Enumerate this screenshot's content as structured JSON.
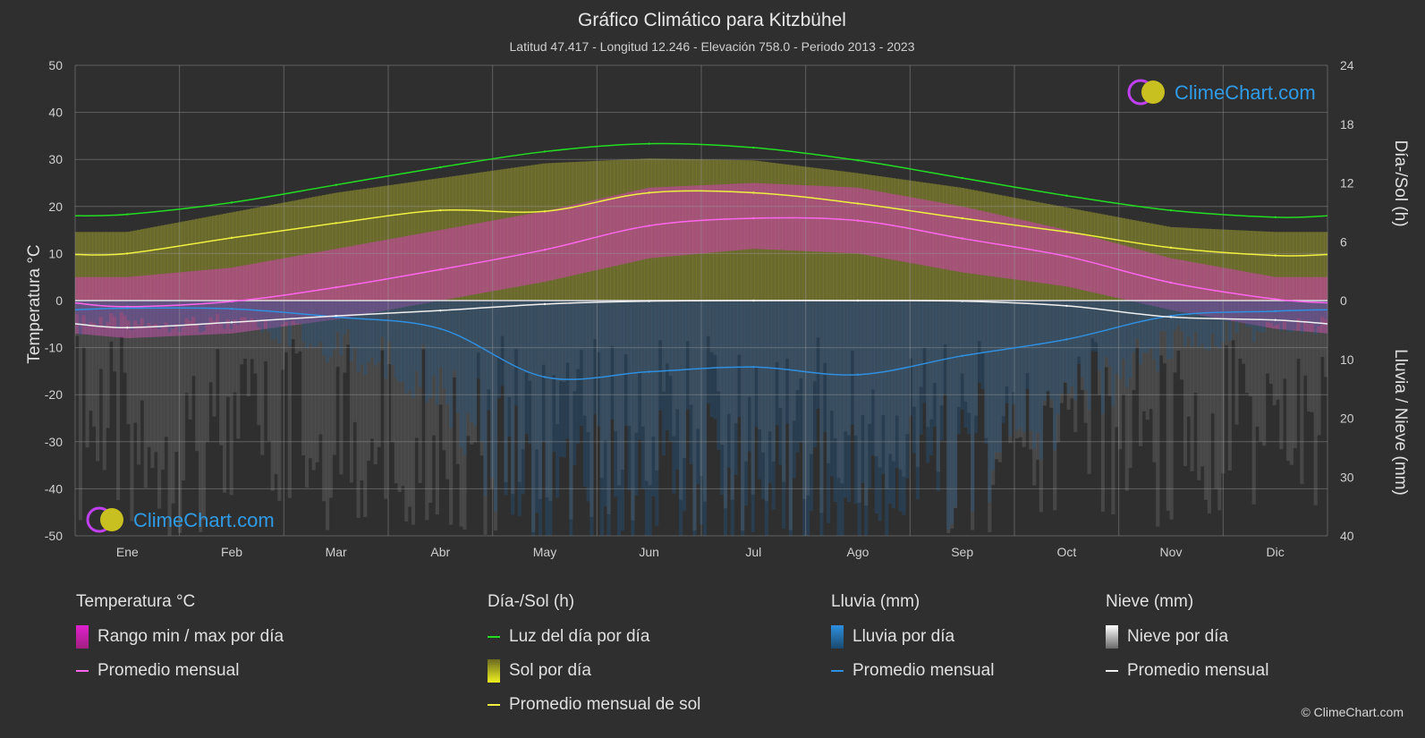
{
  "title": "Gráfico Climático para Kitzbühel",
  "subtitle": "Latitud 47.417 - Longitud 12.246 - Elevación 758.0 - Periodo 2013 - 2023",
  "logo_text": "ClimeChart.com",
  "copyright": "© ClimeChart.com",
  "legend": {
    "temp": {
      "header": "Temperatura °C",
      "range": "Rango min / max por día",
      "avg": "Promedio mensual"
    },
    "sun": {
      "header": "Día-/Sol (h)",
      "daylight": "Luz del día por día",
      "sun_day": "Sol por día",
      "sun_avg": "Promedio mensual de sol"
    },
    "rain": {
      "header": "Lluvia (mm)",
      "rain_day": "Lluvia por día",
      "avg": "Promedio mensual"
    },
    "snow": {
      "header": "Nieve (mm)",
      "snow_day": "Nieve por día",
      "avg": "Promedio mensual"
    }
  },
  "colors": {
    "background": "#2f2f2f",
    "daylight": "#22dd22",
    "sun_avg": "#f0f040",
    "sun_fill": "#9a9a30",
    "temp_avg": "#ff66ee",
    "temp_fill": "#d040b0",
    "rain_avg": "#2f8fe0",
    "rain_fill": "#1f5a8a",
    "snow_avg": "#f0f0f0",
    "snow_fill": "#8a8a8a"
  },
  "chart_data": {
    "type": "line",
    "categories": [
      "Ene",
      "Feb",
      "Mar",
      "Abr",
      "May",
      "Jun",
      "Jul",
      "Ago",
      "Sep",
      "Oct",
      "Nov",
      "Dic"
    ],
    "left_axis": {
      "label": "Temperatura °C",
      "ylim": [
        -50,
        50
      ],
      "ticks": [
        50,
        40,
        30,
        20,
        10,
        0,
        -10,
        -20,
        -30,
        -40,
        -50
      ]
    },
    "right_axis_top": {
      "label": "Día-/Sol (h)",
      "ylim": [
        0,
        24
      ],
      "ticks": [
        24,
        18,
        12,
        6,
        0
      ]
    },
    "right_axis_bottom": {
      "label": "Lluvia / Nieve (mm)",
      "ylim": [
        0,
        40
      ],
      "ticks": [
        0,
        10,
        20,
        30,
        40
      ]
    },
    "grid": true,
    "series": [
      {
        "name": "Luz del día por día",
        "axis": "sun",
        "values": [
          8.8,
          10.0,
          11.8,
          13.6,
          15.2,
          16.0,
          15.6,
          14.3,
          12.5,
          10.7,
          9.2,
          8.5
        ]
      },
      {
        "name": "Promedio mensual de sol",
        "axis": "sun",
        "values": [
          4.8,
          6.4,
          7.9,
          9.2,
          9.1,
          11.0,
          11.0,
          9.9,
          8.4,
          7.0,
          5.4,
          4.6
        ]
      },
      {
        "name": "Sol por día",
        "axis": "sun",
        "values": [
          7.0,
          9.0,
          11.0,
          12.5,
          14.0,
          14.5,
          14.3,
          13.0,
          11.5,
          9.5,
          7.5,
          7.0
        ]
      },
      {
        "name": "Temperatura promedio mensual",
        "axis": "temp",
        "values": [
          -1.3,
          -0.2,
          2.8,
          6.6,
          10.8,
          15.9,
          17.5,
          17.0,
          13.2,
          9.4,
          3.8,
          0.3
        ]
      },
      {
        "name": "Temperatura máx por día",
        "axis": "temp",
        "values": [
          5,
          7,
          11,
          15,
          19,
          24,
          25,
          24,
          20,
          15,
          9,
          5
        ]
      },
      {
        "name": "Temperatura mín por día",
        "axis": "temp",
        "values": [
          -8,
          -7,
          -4,
          0,
          4,
          9,
          11,
          10,
          6,
          3,
          -2,
          -6
        ]
      },
      {
        "name": "Lluvia promedio mensual",
        "axis": "precip",
        "values": [
          1.3,
          1.4,
          2.8,
          4.8,
          13.0,
          12.1,
          11.3,
          12.6,
          9.4,
          6.6,
          2.6,
          1.8
        ]
      },
      {
        "name": "Nieve promedio mensual",
        "axis": "precip",
        "values": [
          4.6,
          3.7,
          2.6,
          1.7,
          0.6,
          0.1,
          0.0,
          0.0,
          0.1,
          0.9,
          2.8,
          3.3
        ]
      }
    ]
  }
}
